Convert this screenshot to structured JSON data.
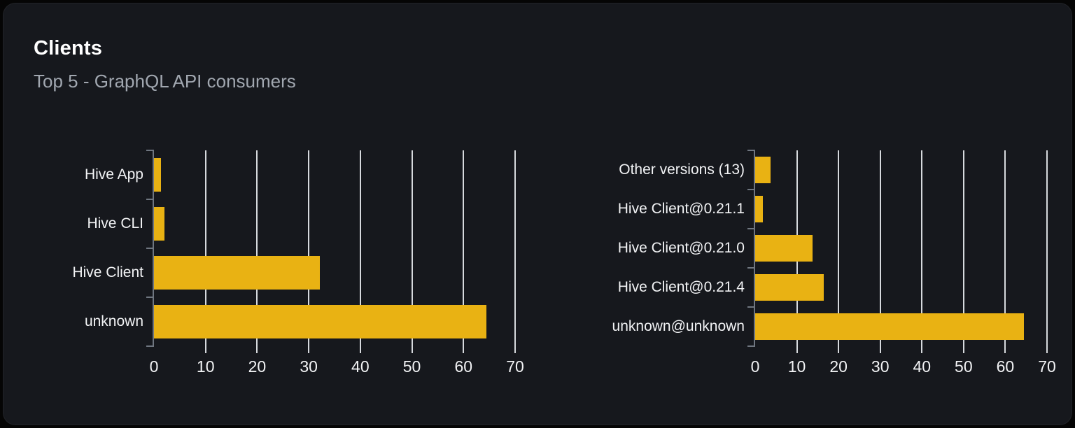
{
  "card": {
    "title": "Clients",
    "subtitle": "Top 5 - GraphQL API consumers"
  },
  "colors": {
    "page_bg": "#050505",
    "card_bg": "#16181d",
    "bar": "#e9b213",
    "grid_line": "#d6d9dd",
    "axis_line": "#6f7680",
    "tick_text": "#f2f3f5",
    "subtitle_text": "#a1a7b0"
  },
  "chart_data": [
    {
      "type": "bar",
      "orientation": "horizontal",
      "name": "clients-by-name",
      "categories": [
        "Hive App",
        "Hive CLI",
        "Hive Client",
        "unknown"
      ],
      "values": [
        1.4,
        2.0,
        32.2,
        64.4
      ],
      "x_ticks": [
        0,
        10,
        20,
        30,
        40,
        50,
        60,
        70
      ],
      "xlim": [
        0,
        70
      ],
      "grid": true,
      "legend": "none"
    },
    {
      "type": "bar",
      "orientation": "horizontal",
      "name": "clients-by-version",
      "categories": [
        "Other versions (13)",
        "Hive Client@0.21.1",
        "Hive Client@0.21.0",
        "Hive Client@0.21.4",
        "unknown@unknown"
      ],
      "values": [
        3.7,
        1.8,
        13.7,
        16.4,
        64.4
      ],
      "x_ticks": [
        0,
        10,
        20,
        30,
        40,
        50,
        60,
        70
      ],
      "xlim": [
        0,
        70
      ],
      "grid": true,
      "legend": "none"
    }
  ]
}
